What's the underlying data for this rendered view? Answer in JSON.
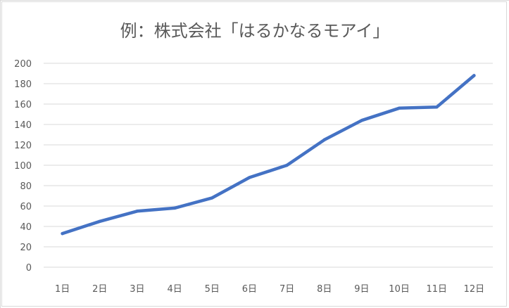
{
  "chart_data": {
    "type": "line",
    "title": "例：株式会社「はるかなるモアイ」",
    "categories": [
      "1日",
      "2日",
      "3日",
      "4日",
      "5日",
      "6日",
      "7日",
      "8日",
      "9日",
      "10日",
      "11日",
      "12日"
    ],
    "series": [
      {
        "values": [
          33,
          45,
          55,
          58,
          68,
          88,
          100,
          125,
          144,
          156,
          157,
          188
        ]
      }
    ],
    "yticks": [
      "0",
      "20",
      "40",
      "60",
      "80",
      "100",
      "120",
      "140",
      "160",
      "180",
      "200"
    ],
    "ylim": [
      0,
      200
    ],
    "xlabel": "",
    "ylabel": "",
    "grid": true,
    "legend": "none",
    "colors": {
      "line": "#4472c4",
      "grid": "#d9d9d9",
      "text": "#595959"
    }
  }
}
